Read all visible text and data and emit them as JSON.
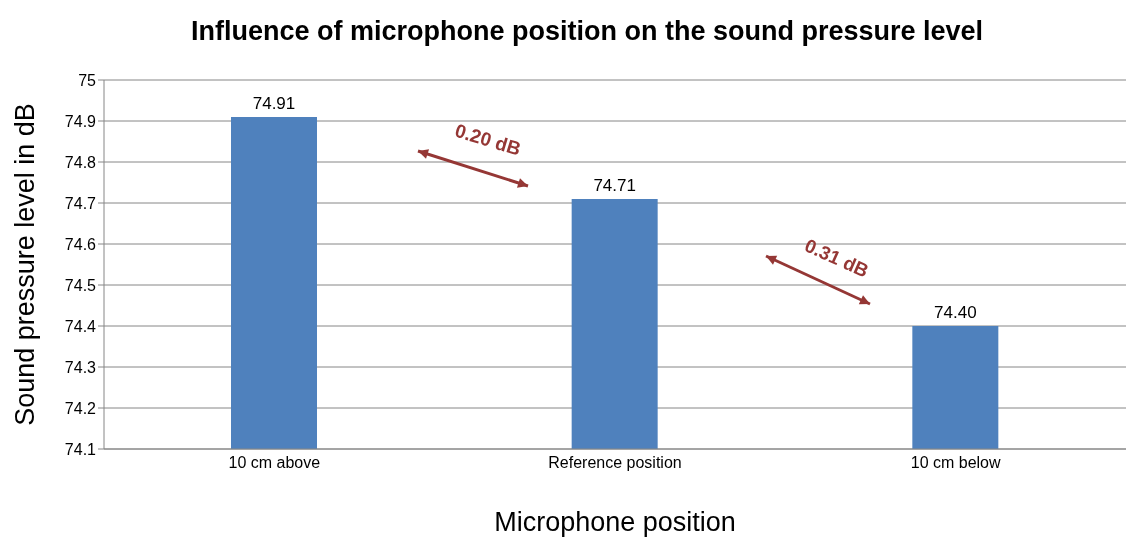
{
  "chart_data": {
    "type": "bar",
    "title": "Influence of microphone position on the sound pressure level",
    "xlabel": "Microphone position",
    "ylabel": "Sound pressure level in dB",
    "categories": [
      "10 cm above",
      "Reference position",
      "10 cm below"
    ],
    "values": [
      74.91,
      74.71,
      74.4
    ],
    "value_labels": [
      "74.91",
      "74.71",
      "74.40"
    ],
    "color": "#4f81bd",
    "ylim": [
      74.1,
      75
    ],
    "yticks": [
      74.1,
      74.2,
      74.3,
      74.4,
      74.5,
      74.6,
      74.7,
      74.8,
      74.9,
      75
    ],
    "grid": "y",
    "annotations": [
      "0.20 dB",
      "0.31 dB"
    ]
  }
}
